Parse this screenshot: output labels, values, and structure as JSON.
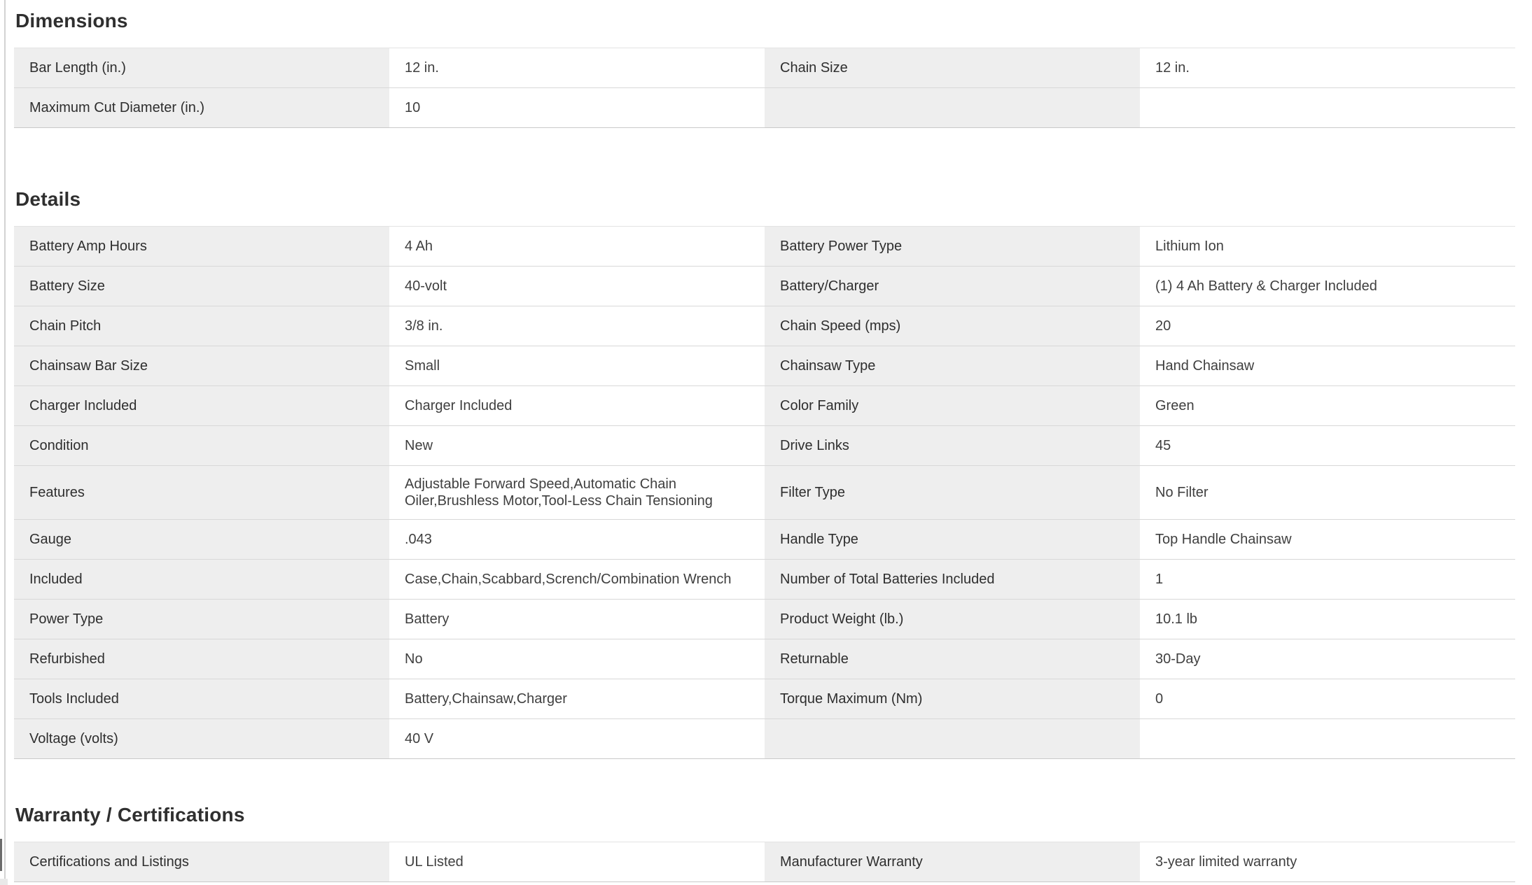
{
  "colors": {
    "background": "#ffffff",
    "label_cell_bg": "#eeeeee",
    "row_border": "#d8d8d8",
    "heading_text": "#2f2f2f",
    "label_text": "#2e2e2e",
    "value_text": "#3f3f3f"
  },
  "sections": [
    {
      "title": "Dimensions",
      "rows": [
        {
          "left_label": "Bar Length (in.)",
          "left_value": "12 in.",
          "right_label": "Chain Size",
          "right_value": "12 in."
        },
        {
          "left_label": "Maximum Cut Diameter (in.)",
          "left_value": "10",
          "right_label": "",
          "right_value": ""
        }
      ]
    },
    {
      "title": "Details",
      "rows": [
        {
          "left_label": "Battery Amp Hours",
          "left_value": "4 Ah",
          "right_label": "Battery Power Type",
          "right_value": "Lithium Ion"
        },
        {
          "left_label": "Battery Size",
          "left_value": "40-volt",
          "right_label": "Battery/Charger",
          "right_value": "(1) 4 Ah Battery & Charger Included"
        },
        {
          "left_label": "Chain Pitch",
          "left_value": "3/8 in.",
          "right_label": "Chain Speed (mps)",
          "right_value": "20"
        },
        {
          "left_label": "Chainsaw Bar Size",
          "left_value": "Small",
          "right_label": "Chainsaw Type",
          "right_value": "Hand Chainsaw"
        },
        {
          "left_label": "Charger Included",
          "left_value": "Charger Included",
          "right_label": "Color Family",
          "right_value": "Green"
        },
        {
          "left_label": "Condition",
          "left_value": "New",
          "right_label": "Drive Links",
          "right_value": "45"
        },
        {
          "left_label": "Features",
          "left_value": "Adjustable Forward Speed,Automatic Chain Oiler,Brushless Motor,Tool-Less Chain Tensioning",
          "right_label": "Filter Type",
          "right_value": "No Filter"
        },
        {
          "left_label": "Gauge",
          "left_value": ".043",
          "right_label": "Handle Type",
          "right_value": "Top Handle Chainsaw"
        },
        {
          "left_label": "Included",
          "left_value": "Case,Chain,Scabbard,Scrench/Combination Wrench",
          "right_label": "Number of Total Batteries Included",
          "right_value": "1"
        },
        {
          "left_label": "Power Type",
          "left_value": "Battery",
          "right_label": "Product Weight (lb.)",
          "right_value": "10.1 lb"
        },
        {
          "left_label": "Refurbished",
          "left_value": "No",
          "right_label": "Returnable",
          "right_value": "30-Day"
        },
        {
          "left_label": "Tools Included",
          "left_value": "Battery,Chainsaw,Charger",
          "right_label": "Torque Maximum (Nm)",
          "right_value": "0"
        },
        {
          "left_label": "Voltage (volts)",
          "left_value": "40 V",
          "right_label": "",
          "right_value": ""
        }
      ]
    },
    {
      "title": "Warranty / Certifications",
      "rows": [
        {
          "left_label": "Certifications and Listings",
          "left_value": "UL Listed",
          "right_label": "Manufacturer Warranty",
          "right_value": "3-year limited warranty"
        }
      ]
    }
  ]
}
